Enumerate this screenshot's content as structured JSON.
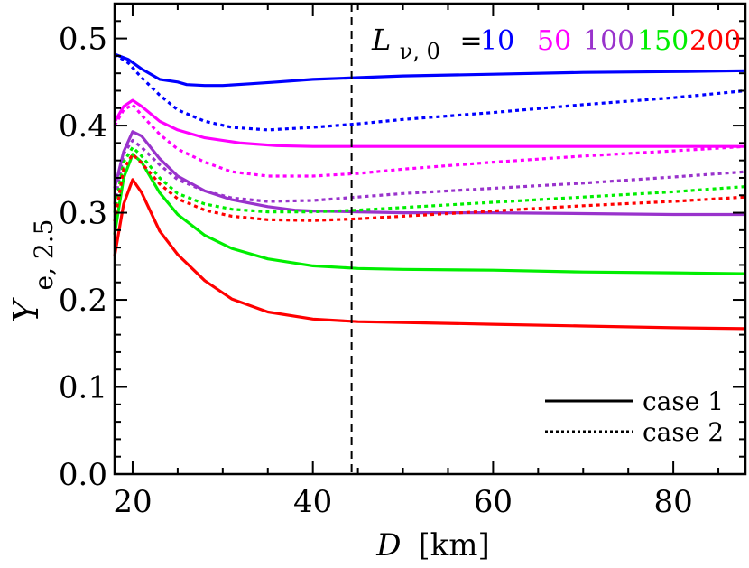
{
  "chart_data": {
    "type": "line",
    "xlabel_var": "D",
    "xlabel_unit": "[km]",
    "ylabel_var": "Y",
    "ylabel_sub": "e, 2.5",
    "xlim": [
      18,
      88
    ],
    "ylim": [
      0.0,
      0.54
    ],
    "x_ticks": [
      20,
      40,
      60,
      80
    ],
    "x_tick_labels": [
      "20",
      "40",
      "60",
      "80"
    ],
    "y_ticks": [
      0.0,
      0.1,
      0.2,
      0.3,
      0.4,
      0.5
    ],
    "y_tick_labels": [
      "0.0",
      "0.1",
      "0.2",
      "0.3",
      "0.4",
      "0.5"
    ],
    "vline_x": 44.3,
    "grid": false,
    "lum_legend": {
      "symbol": "L",
      "subscript": "ν, 0",
      "equals": "=",
      "entries": [
        {
          "label": "10",
          "color": "#0000ff"
        },
        {
          "label": "50",
          "color": "#ff00ff"
        },
        {
          "label": "100",
          "color": "#9933cc"
        },
        {
          "label": "150",
          "color": "#00ee00"
        },
        {
          "label": "200",
          "color": "#ff0000"
        }
      ]
    },
    "style_legend": [
      {
        "label": "case 1",
        "dash": "solid"
      },
      {
        "label": "case 2",
        "dash": "dotted"
      }
    ],
    "series": [
      {
        "color": "#0000ff",
        "dash": "solid",
        "x": [
          18,
          19.5,
          21,
          23,
          25,
          26,
          28,
          30,
          33,
          36,
          40,
          45,
          50,
          60,
          70,
          80,
          88
        ],
        "y": [
          0.482,
          0.476,
          0.465,
          0.453,
          0.45,
          0.447,
          0.446,
          0.446,
          0.448,
          0.45,
          0.453,
          0.455,
          0.457,
          0.459,
          0.461,
          0.462,
          0.463
        ]
      },
      {
        "color": "#0000ff",
        "dash": "dotted",
        "x": [
          18,
          19.5,
          21,
          23,
          25,
          28,
          31,
          35,
          40,
          45,
          50,
          60,
          70,
          80,
          88
        ],
        "y": [
          0.482,
          0.472,
          0.455,
          0.435,
          0.418,
          0.405,
          0.398,
          0.395,
          0.398,
          0.402,
          0.407,
          0.415,
          0.424,
          0.432,
          0.44
        ]
      },
      {
        "color": "#ff00ff",
        "dash": "solid",
        "x": [
          18,
          19,
          20,
          21,
          23,
          25,
          28,
          32,
          36,
          40,
          45,
          50,
          60,
          70,
          80,
          88
        ],
        "y": [
          0.404,
          0.422,
          0.429,
          0.422,
          0.405,
          0.395,
          0.386,
          0.38,
          0.377,
          0.376,
          0.376,
          0.376,
          0.376,
          0.376,
          0.376,
          0.376
        ]
      },
      {
        "color": "#ff00ff",
        "dash": "dotted",
        "x": [
          18,
          19,
          20,
          21,
          23,
          25,
          28,
          31,
          35,
          40,
          45,
          50,
          60,
          70,
          80,
          88
        ],
        "y": [
          0.4,
          0.418,
          0.424,
          0.412,
          0.39,
          0.373,
          0.358,
          0.347,
          0.342,
          0.342,
          0.345,
          0.35,
          0.358,
          0.365,
          0.371,
          0.376
        ]
      },
      {
        "color": "#9933cc",
        "dash": "solid",
        "x": [
          18,
          19,
          20,
          21,
          23,
          25,
          28,
          31,
          35,
          38,
          40,
          45,
          50,
          60,
          70,
          80,
          88
        ],
        "y": [
          0.328,
          0.37,
          0.393,
          0.388,
          0.362,
          0.342,
          0.325,
          0.315,
          0.307,
          0.303,
          0.302,
          0.301,
          0.3,
          0.3,
          0.299,
          0.298,
          0.298
        ]
      },
      {
        "color": "#9933cc",
        "dash": "dotted",
        "x": [
          18,
          19,
          20,
          21,
          23,
          25,
          28,
          31,
          35,
          40,
          45,
          50,
          60,
          70,
          80,
          88
        ],
        "y": [
          0.31,
          0.368,
          0.383,
          0.375,
          0.355,
          0.338,
          0.325,
          0.317,
          0.313,
          0.314,
          0.318,
          0.322,
          0.328,
          0.334,
          0.341,
          0.347
        ]
      },
      {
        "color": "#00ee00",
        "dash": "solid",
        "x": [
          18,
          19,
          20,
          21,
          23,
          25,
          28,
          31,
          35,
          40,
          45,
          50,
          60,
          70,
          80,
          88
        ],
        "y": [
          0.275,
          0.34,
          0.367,
          0.358,
          0.323,
          0.298,
          0.274,
          0.259,
          0.247,
          0.239,
          0.236,
          0.235,
          0.234,
          0.232,
          0.231,
          0.23
        ]
      },
      {
        "color": "#00ee00",
        "dash": "dotted",
        "x": [
          18,
          19,
          20,
          21,
          23,
          25,
          28,
          31,
          35,
          40,
          45,
          50,
          60,
          70,
          80,
          88
        ],
        "y": [
          0.3,
          0.358,
          0.375,
          0.365,
          0.34,
          0.322,
          0.31,
          0.304,
          0.301,
          0.301,
          0.303,
          0.306,
          0.312,
          0.318,
          0.324,
          0.33
        ]
      },
      {
        "color": "#ff0000",
        "dash": "solid",
        "x": [
          18,
          19,
          20,
          21,
          23,
          25,
          28,
          31,
          35,
          40,
          45,
          50,
          60,
          70,
          80,
          88
        ],
        "y": [
          0.25,
          0.31,
          0.338,
          0.323,
          0.279,
          0.252,
          0.222,
          0.201,
          0.186,
          0.178,
          0.175,
          0.174,
          0.172,
          0.17,
          0.168,
          0.167
        ]
      },
      {
        "color": "#ff0000",
        "dash": "dotted",
        "x": [
          18,
          19,
          20,
          21,
          23,
          25,
          28,
          31,
          35,
          40,
          45,
          50,
          60,
          70,
          80,
          88
        ],
        "y": [
          0.29,
          0.35,
          0.367,
          0.357,
          0.333,
          0.316,
          0.303,
          0.296,
          0.292,
          0.291,
          0.293,
          0.296,
          0.302,
          0.308,
          0.313,
          0.318
        ]
      }
    ]
  }
}
